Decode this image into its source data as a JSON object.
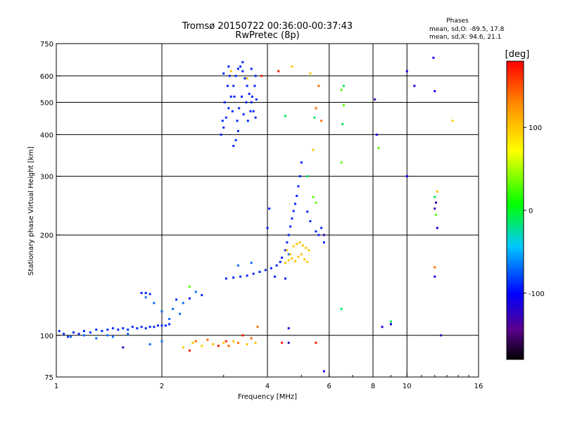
{
  "chart_data": {
    "type": "scatter",
    "title": "Tromsø 20150722 00:36:00-00:37:43",
    "subtitle": "RwPretec (8p)",
    "xlabel": "Frequency [MHz]",
    "ylabel": "Stationary phase Virtual Height [km]",
    "xscale": "log",
    "yscale": "log",
    "xlim": [
      1,
      16
    ],
    "ylim": [
      75,
      750
    ],
    "x_ticks": [
      1,
      2,
      4,
      6,
      8,
      10,
      16
    ],
    "y_ticks": [
      75,
      100,
      200,
      300,
      400,
      500,
      600,
      750
    ],
    "grid": true,
    "phases_box": {
      "title": "Phases",
      "line1": "mean, sd,O: -89.5, 17.8",
      "line2": "mean, sd,X:  94.6, 21.1"
    },
    "colorbar": {
      "label": "[deg]",
      "range": [
        -180,
        180
      ],
      "ticks": [
        100,
        0,
        -100
      ]
    },
    "series": [
      {
        "phase": -90,
        "points": [
          [
            1.02,
            103
          ],
          [
            1.05,
            101
          ],
          [
            1.08,
            99
          ],
          [
            1.12,
            102
          ],
          [
            1.16,
            101
          ],
          [
            1.2,
            103
          ],
          [
            1.25,
            102
          ],
          [
            1.3,
            104
          ],
          [
            1.35,
            103
          ],
          [
            1.4,
            104
          ],
          [
            1.45,
            105
          ],
          [
            1.5,
            104
          ],
          [
            1.55,
            105
          ],
          [
            1.6,
            104
          ],
          [
            1.65,
            106
          ],
          [
            1.7,
            105
          ],
          [
            1.75,
            106
          ],
          [
            1.8,
            105
          ],
          [
            1.85,
            106
          ],
          [
            1.9,
            106
          ],
          [
            1.95,
            107
          ],
          [
            2.0,
            107
          ],
          [
            2.05,
            107
          ],
          [
            2.1,
            108
          ],
          [
            1.75,
            134
          ],
          [
            1.8,
            134
          ],
          [
            1.85,
            133
          ],
          [
            2.2,
            128
          ],
          [
            2.4,
            129
          ],
          [
            2.6,
            132
          ],
          [
            3.05,
            148
          ],
          [
            3.2,
            149
          ],
          [
            3.35,
            150
          ],
          [
            3.5,
            151
          ],
          [
            3.65,
            153
          ],
          [
            3.8,
            155
          ],
          [
            3.95,
            157
          ],
          [
            4.1,
            159
          ],
          [
            4.25,
            162
          ],
          [
            4.35,
            166
          ],
          [
            4.4,
            171
          ],
          [
            4.5,
            180
          ],
          [
            4.55,
            190
          ],
          [
            4.6,
            200
          ],
          [
            4.65,
            212
          ],
          [
            4.7,
            224
          ],
          [
            4.75,
            236
          ],
          [
            4.8,
            248
          ],
          [
            4.85,
            262
          ],
          [
            4.9,
            280
          ],
          [
            4.95,
            300
          ],
          [
            4.0,
            210
          ],
          [
            4.05,
            240
          ],
          [
            5.0,
            330
          ],
          [
            2.95,
            400
          ],
          [
            3.0,
            420
          ],
          [
            3.05,
            450
          ],
          [
            3.1,
            480
          ],
          [
            3.15,
            520
          ],
          [
            3.2,
            560
          ],
          [
            3.25,
            600
          ],
          [
            3.3,
            630
          ],
          [
            3.35,
            640
          ],
          [
            3.4,
            620
          ],
          [
            3.45,
            590
          ],
          [
            3.5,
            560
          ],
          [
            3.55,
            530
          ],
          [
            3.6,
            500
          ],
          [
            3.65,
            470
          ],
          [
            3.7,
            450
          ],
          [
            3.2,
            370
          ],
          [
            3.25,
            385
          ],
          [
            3.3,
            410
          ],
          [
            3.0,
            610
          ],
          [
            3.1,
            640
          ],
          [
            3.4,
            660
          ],
          [
            3.6,
            630
          ],
          [
            3.7,
            600
          ],
          [
            2.98,
            440
          ],
          [
            3.02,
            500
          ],
          [
            3.08,
            560
          ],
          [
            3.12,
            600
          ],
          [
            3.18,
            470
          ],
          [
            3.22,
            520
          ],
          [
            3.28,
            440
          ],
          [
            3.32,
            480
          ],
          [
            3.38,
            520
          ],
          [
            3.42,
            460
          ],
          [
            3.48,
            500
          ],
          [
            3.52,
            440
          ],
          [
            3.58,
            470
          ],
          [
            3.62,
            520
          ],
          [
            3.68,
            560
          ],
          [
            3.72,
            510
          ],
          [
            5.7,
            210
          ],
          [
            5.6,
            200
          ],
          [
            5.8,
            190
          ],
          [
            5.5,
            205
          ],
          [
            4.2,
            150
          ],
          [
            4.5,
            148
          ],
          [
            5.3,
            220
          ],
          [
            5.2,
            235
          ]
        ]
      },
      {
        "phase": -70,
        "points": [
          [
            1.8,
            130
          ],
          [
            1.9,
            125
          ],
          [
            2.0,
            118
          ],
          [
            2.1,
            112
          ],
          [
            2.15,
            120
          ],
          [
            2.25,
            116
          ],
          [
            2.3,
            125
          ],
          [
            2.5,
            135
          ],
          [
            1.3,
            98
          ],
          [
            1.45,
            99
          ],
          [
            1.6,
            101
          ],
          [
            1.85,
            94
          ],
          [
            2.0,
            96
          ],
          [
            3.3,
            162
          ],
          [
            3.6,
            165
          ],
          [
            4.6,
            175
          ],
          [
            1.1,
            99
          ],
          [
            1.2,
            100
          ],
          [
            1.4,
            100
          ]
        ]
      },
      {
        "phase": 100,
        "points": [
          [
            4.55,
            180
          ],
          [
            4.65,
            175
          ],
          [
            4.75,
            185
          ],
          [
            4.85,
            188
          ],
          [
            4.95,
            190
          ],
          [
            5.05,
            186
          ],
          [
            5.15,
            183
          ],
          [
            5.25,
            180
          ],
          [
            4.5,
            165
          ],
          [
            4.6,
            168
          ],
          [
            4.7,
            170
          ],
          [
            4.8,
            167
          ],
          [
            4.9,
            172
          ],
          [
            5.0,
            175
          ],
          [
            5.1,
            169
          ],
          [
            5.2,
            166
          ],
          [
            2.3,
            92
          ],
          [
            2.45,
            95
          ],
          [
            2.6,
            93
          ],
          [
            2.8,
            94
          ],
          [
            3.0,
            95
          ],
          [
            3.2,
            96
          ],
          [
            3.5,
            94
          ],
          [
            3.7,
            95
          ],
          [
            3.15,
            620
          ],
          [
            3.5,
            590
          ],
          [
            4.7,
            640
          ],
          [
            5.3,
            610
          ],
          [
            13.5,
            440
          ],
          [
            12.2,
            270
          ],
          [
            5.4,
            360
          ]
        ]
      },
      {
        "phase": 140,
        "points": [
          [
            2.5,
            96
          ],
          [
            2.7,
            97
          ],
          [
            3.1,
            93
          ],
          [
            3.3,
            95
          ],
          [
            3.6,
            98
          ],
          [
            5.6,
            560
          ],
          [
            5.5,
            480
          ],
          [
            12.0,
            160
          ],
          [
            5.7,
            440
          ],
          [
            3.75,
            106
          ]
        ]
      },
      {
        "phase": 170,
        "points": [
          [
            2.4,
            90
          ],
          [
            2.9,
            93
          ],
          [
            3.05,
            96
          ],
          [
            3.4,
            100
          ],
          [
            4.4,
            95
          ],
          [
            5.5,
            95
          ],
          [
            3.85,
            600
          ],
          [
            4.3,
            620
          ]
        ]
      },
      {
        "phase": 30,
        "points": [
          [
            6.5,
            545
          ],
          [
            6.6,
            490
          ],
          [
            6.5,
            330
          ],
          [
            5.4,
            260
          ],
          [
            5.5,
            250
          ],
          [
            8.3,
            365
          ],
          [
            12.1,
            230
          ],
          [
            2.4,
            140
          ]
        ]
      },
      {
        "phase": -10,
        "points": [
          [
            6.6,
            560
          ],
          [
            6.55,
            430
          ],
          [
            5.45,
            450
          ],
          [
            4.5,
            455
          ],
          [
            5.2,
            300
          ],
          [
            12.0,
            260
          ],
          [
            9.0,
            110
          ],
          [
            6.5,
            120
          ]
        ]
      },
      {
        "phase": -130,
        "points": [
          [
            8.1,
            510
          ],
          [
            12.0,
            240
          ],
          [
            12.1,
            250
          ],
          [
            4.6,
            95
          ],
          [
            5.8,
            200
          ],
          [
            1.55,
            92
          ],
          [
            12.5,
            100
          ]
        ]
      },
      {
        "phase": -110,
        "points": [
          [
            10.0,
            620
          ],
          [
            10.5,
            560
          ],
          [
            11.9,
            680
          ],
          [
            12.0,
            540
          ],
          [
            12.2,
            210
          ],
          [
            8.2,
            400
          ],
          [
            10.0,
            300
          ],
          [
            5.8,
            78
          ],
          [
            4.6,
            105
          ],
          [
            8.5,
            106
          ],
          [
            9.0,
            108
          ],
          [
            12.0,
            150
          ]
        ]
      }
    ]
  }
}
